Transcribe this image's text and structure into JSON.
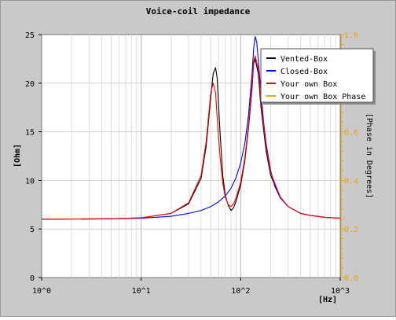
{
  "window": {
    "background": "#c9c9c9"
  },
  "chart_data": {
    "type": "line",
    "title": "Voice-coil impedance",
    "xlabel": "[Hz]",
    "ylabel": "[Ohm]",
    "y2label": "[Phase in Degrees]",
    "x_scale": "log",
    "xlim": [
      1,
      1000
    ],
    "ylim": [
      0,
      25
    ],
    "y2lim": [
      0.0,
      1.0
    ],
    "grid": true,
    "legend_position": "top-right",
    "x_ticks": [
      {
        "value": 1,
        "label": "10^0"
      },
      {
        "value": 10,
        "label": "10^1"
      },
      {
        "value": 100,
        "label": "10^2"
      },
      {
        "value": 1000,
        "label": "10^3"
      }
    ],
    "y_ticks": [
      0,
      5,
      10,
      15,
      20,
      25
    ],
    "y2_ticks": [
      "0.0",
      "0.2",
      "0.4",
      "0.6",
      "0.8",
      "1.0"
    ],
    "colors": {
      "y2_axis": "#f0a400"
    },
    "series": [
      {
        "name": "Vented-Box",
        "color": "#000000",
        "x": [
          1,
          5,
          10,
          20,
          30,
          40,
          45,
          50,
          53,
          56,
          58,
          62,
          66,
          70,
          75,
          80,
          85,
          90,
          100,
          110,
          120,
          130,
          135,
          140,
          150,
          160,
          180,
          200,
          250,
          300,
          400,
          500,
          700,
          1000
        ],
        "y": [
          6.0,
          6.05,
          6.15,
          6.6,
          7.6,
          10.2,
          13.5,
          18.5,
          21.0,
          21.6,
          20.5,
          15.0,
          10.5,
          8.5,
          7.4,
          6.9,
          7.2,
          7.9,
          9.5,
          12.0,
          15.5,
          19.5,
          22.0,
          22.5,
          21.0,
          17.5,
          13.0,
          10.5,
          8.2,
          7.3,
          6.6,
          6.4,
          6.2,
          6.1
        ]
      },
      {
        "name": "Closed-Box",
        "color": "#0000ff",
        "x": [
          2.5,
          10,
          20,
          30,
          40,
          50,
          60,
          70,
          80,
          90,
          100,
          110,
          120,
          130,
          135,
          140,
          145,
          150,
          160,
          170,
          180,
          200,
          220,
          250,
          300,
          400,
          500,
          700,
          1000
        ],
        "y": [
          6.0,
          6.1,
          6.3,
          6.6,
          6.9,
          7.3,
          7.8,
          8.4,
          9.2,
          10.3,
          11.8,
          13.8,
          16.8,
          21.0,
          23.5,
          24.8,
          24.2,
          22.5,
          19.0,
          16.0,
          13.8,
          11.0,
          9.4,
          8.2,
          7.3,
          6.6,
          6.4,
          6.2,
          6.1
        ]
      },
      {
        "name": "Your own Box",
        "color": "#ff0000",
        "x": [
          1,
          5,
          10,
          20,
          30,
          40,
          45,
          50,
          53,
          56,
          58,
          62,
          66,
          70,
          75,
          80,
          85,
          90,
          100,
          110,
          120,
          130,
          135,
          140,
          150,
          160,
          180,
          200,
          250,
          300,
          400,
          500,
          700,
          1000
        ],
        "y": [
          6.0,
          6.05,
          6.15,
          6.6,
          7.7,
          10.5,
          14.0,
          19.0,
          20.0,
          19.0,
          16.5,
          12.5,
          9.7,
          8.3,
          7.5,
          7.3,
          7.6,
          8.2,
          9.8,
          12.3,
          15.8,
          20.0,
          22.3,
          22.8,
          21.5,
          18.0,
          13.5,
          10.8,
          8.3,
          7.3,
          6.6,
          6.4,
          6.2,
          6.1
        ]
      },
      {
        "name": "Your own Box Phase",
        "color": "#f0a400",
        "x": [],
        "y": []
      }
    ]
  }
}
